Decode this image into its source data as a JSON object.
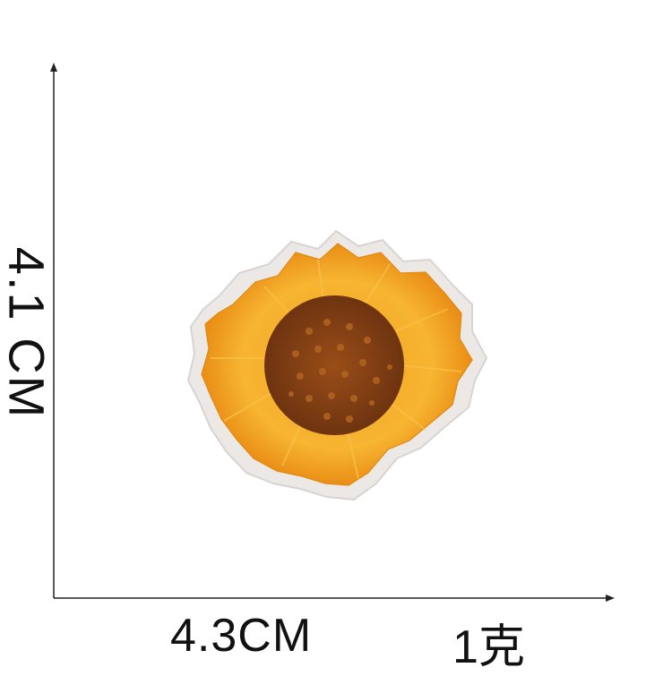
{
  "dimensions": {
    "height_label": "4.1 CM",
    "width_label": "4.3CM",
    "weight_label": "1克"
  },
  "product": {
    "icon": "sunflower-embroidered-patch",
    "colors": {
      "petal": "#f5a623",
      "petal_dark": "#e8891b",
      "center": "#7a3d10",
      "center_light": "#a9561b",
      "border": "#ece8e6"
    }
  }
}
